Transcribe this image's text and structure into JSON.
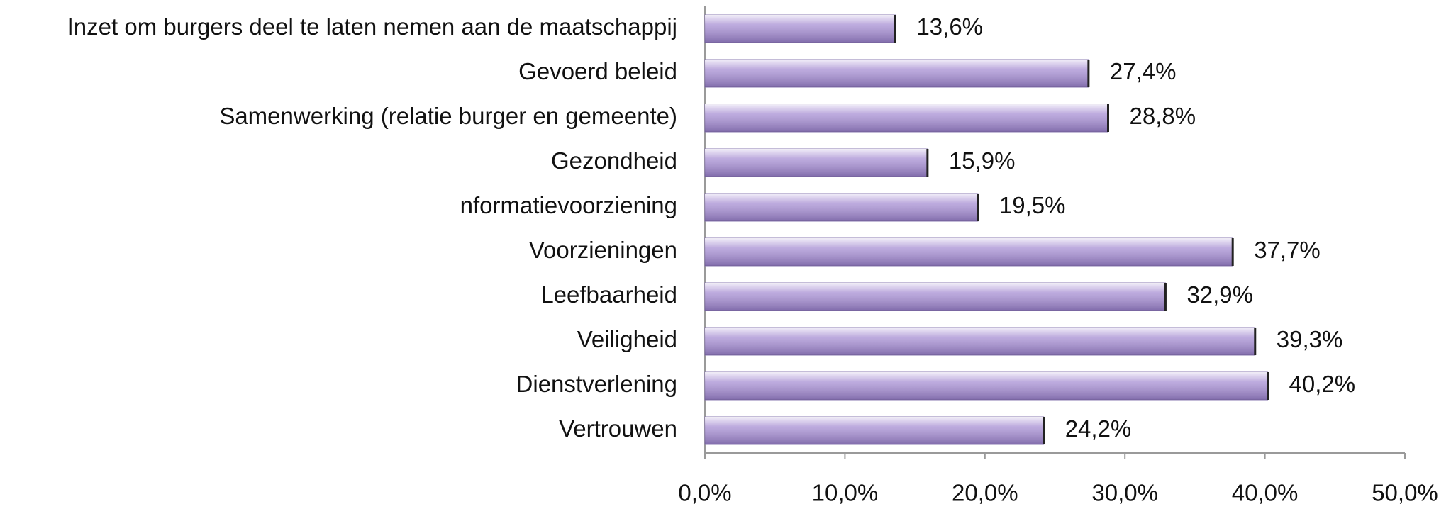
{
  "chart_data": {
    "type": "bar",
    "orientation": "horizontal",
    "categories": [
      "Inzet om burgers deel te laten nemen aan de maatschappij",
      "Gevoerd beleid",
      "Samenwerking (relatie burger en gemeente)",
      "Gezondheid",
      "nformatievoorziening",
      "Voorzieningen",
      "Leefbaarheid",
      "Veiligheid",
      "Dienstverlening",
      "Vertrouwen"
    ],
    "values": [
      13.6,
      27.4,
      28.8,
      15.9,
      19.5,
      37.7,
      32.9,
      39.3,
      40.2,
      24.2
    ],
    "value_labels": [
      "13,6%",
      "27,4%",
      "28,8%",
      "15,9%",
      "19,5%",
      "37,7%",
      "32,9%",
      "39,3%",
      "40,2%",
      "24,2%"
    ],
    "color": "#a890d4",
    "xlim": [
      0,
      50
    ],
    "xticks": [
      {
        "value": 0,
        "label": "0,0%"
      },
      {
        "value": 10,
        "label": "10,0%"
      },
      {
        "value": 20,
        "label": "20,0%"
      },
      {
        "value": 30,
        "label": "30,0%"
      },
      {
        "value": 40,
        "label": "40,0%"
      },
      {
        "value": 50,
        "label": "50,0%"
      }
    ],
    "grid": false
  }
}
